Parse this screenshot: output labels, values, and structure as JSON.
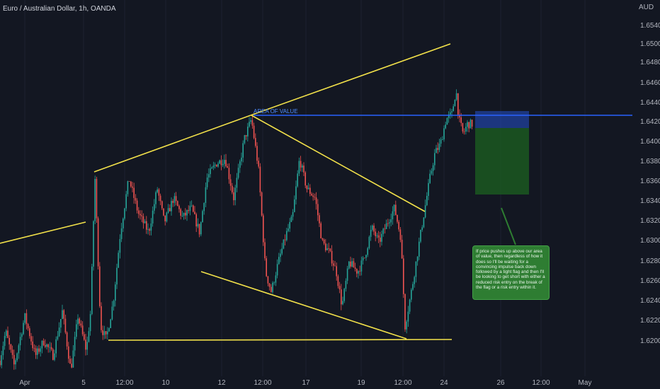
{
  "header": {
    "title": "Euro / Australian Dollar, 1h, OANDA"
  },
  "annotation": {
    "zone_label": "AREA OF VALUE",
    "note": "If price pushes up above our area of value, then regardless of how it does so I'll be waiting for a convincing impulse back down followed by a tight flag and then I'll be looking to get short with either a reduced risk entry on the break of the flag or a risk entry within it."
  },
  "colors": {
    "background": "#131722",
    "up": "#26a69a",
    "down": "#ef5350",
    "trendline": "#f2e14a",
    "level": "#2962ff",
    "note_bg": "#2e7d32"
  },
  "chart_data": {
    "type": "candlestick",
    "title": "Euro / Australian Dollar, 1h, OANDA",
    "ylabel": "AUD",
    "ylim": [
      1.619,
      1.6555
    ],
    "yticks": [
      "1.65400",
      "1.65000",
      "1.64800",
      "1.64600",
      "1.64400",
      "1.64200",
      "1.64000",
      "1.63800",
      "1.63600",
      "1.63400",
      "1.63200",
      "1.63000",
      "1.62800",
      "1.62600",
      "1.62400",
      "1.62200",
      "1.62000"
    ],
    "xticks": [
      "Apr",
      "5",
      "12:00",
      "10",
      "12",
      "12:00",
      "17",
      "19",
      "12:00",
      "24",
      "26",
      "12:00",
      "May"
    ],
    "price_path": [
      [
        0,
        1.62
      ],
      [
        8,
        1.623
      ],
      [
        20,
        1.6195
      ],
      [
        35,
        1.6245
      ],
      [
        50,
        1.6205
      ],
      [
        62,
        1.622
      ],
      [
        75,
        1.6205
      ],
      [
        88,
        1.625
      ],
      [
        100,
        1.619
      ],
      [
        110,
        1.6245
      ],
      [
        122,
        1.621
      ],
      [
        128,
        1.625
      ],
      [
        134,
        1.6388
      ],
      [
        142,
        1.6235
      ],
      [
        150,
        1.6222
      ],
      [
        160,
        1.626
      ],
      [
        170,
        1.633
      ],
      [
        182,
        1.6385
      ],
      [
        195,
        1.635
      ],
      [
        210,
        1.633
      ],
      [
        222,
        1.6375
      ],
      [
        232,
        1.634
      ],
      [
        245,
        1.6365
      ],
      [
        258,
        1.6345
      ],
      [
        270,
        1.6355
      ],
      [
        282,
        1.633
      ],
      [
        292,
        1.6385
      ],
      [
        305,
        1.64
      ],
      [
        318,
        1.6405
      ],
      [
        330,
        1.6365
      ],
      [
        345,
        1.6425
      ],
      [
        355,
        1.6445
      ],
      [
        365,
        1.6395
      ],
      [
        375,
        1.629
      ],
      [
        383,
        1.627
      ],
      [
        393,
        1.63
      ],
      [
        405,
        1.633
      ],
      [
        413,
        1.6345
      ],
      [
        423,
        1.6405
      ],
      [
        433,
        1.6375
      ],
      [
        445,
        1.6365
      ],
      [
        455,
        1.632
      ],
      [
        465,
        1.631
      ],
      [
        475,
        1.629
      ],
      [
        483,
        1.6255
      ],
      [
        493,
        1.63
      ],
      [
        505,
        1.629
      ],
      [
        515,
        1.6305
      ],
      [
        525,
        1.6335
      ],
      [
        535,
        1.632
      ],
      [
        547,
        1.634
      ],
      [
        557,
        1.6355
      ],
      [
        566,
        1.6325
      ],
      [
        572,
        1.6235
      ],
      [
        582,
        1.6275
      ],
      [
        592,
        1.632
      ],
      [
        600,
        1.6355
      ],
      [
        607,
        1.6385
      ],
      [
        614,
        1.641
      ],
      [
        622,
        1.642
      ],
      [
        630,
        1.6445
      ],
      [
        638,
        1.645
      ],
      [
        644,
        1.6475
      ],
      [
        648,
        1.6445
      ],
      [
        654,
        1.643
      ],
      [
        660,
        1.644
      ],
      [
        668,
        1.644
      ]
    ],
    "levels": [
      {
        "name": "AREA OF VALUE",
        "price": 1.6446
      }
    ],
    "trendlines": [
      {
        "from": [
          "Apr",
          1.632
        ],
        "to": [
          "5",
          1.634
        ]
      },
      {
        "from": [
          "5",
          1.639
        ],
        "to": [
          "12:00",
          1.6446
        ]
      },
      {
        "from": [
          "12:00",
          1.6446
        ],
        "to": [
          "24",
          1.6523
        ]
      },
      {
        "from": [
          "12:00",
          1.6446
        ],
        "to": [
          "12:00",
          1.635
        ]
      },
      {
        "from": [
          "10",
          1.6297
        ],
        "to": [
          "12:00",
          1.6222
        ]
      },
      {
        "from": [
          "5",
          1.622
        ],
        "to": [
          "24",
          1.6221
        ]
      }
    ],
    "position_box": {
      "entry": 1.6446,
      "stop": 1.6452,
      "target": 1.6368
    }
  }
}
